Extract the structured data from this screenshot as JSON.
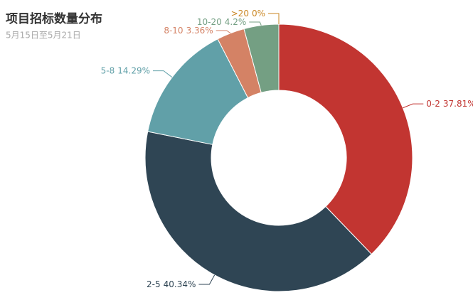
{
  "chart_data": {
    "type": "pie",
    "title": "项目招标数量分布",
    "subtitle": "5月15日至5月21日",
    "categories": [
      "0-2",
      "2-5",
      "5-8",
      "8-10",
      "10-20",
      ">20"
    ],
    "values": [
      37.81,
      40.34,
      14.29,
      3.36,
      4.2,
      0
    ],
    "value_labels": [
      "37.81%",
      "40.34%",
      "14.29%",
      "3.36%",
      "4.2%",
      "0%"
    ],
    "colors": [
      "#c23531",
      "#2f4554",
      "#61a0a8",
      "#d48265",
      "#749f83",
      "#ca8622"
    ]
  }
}
